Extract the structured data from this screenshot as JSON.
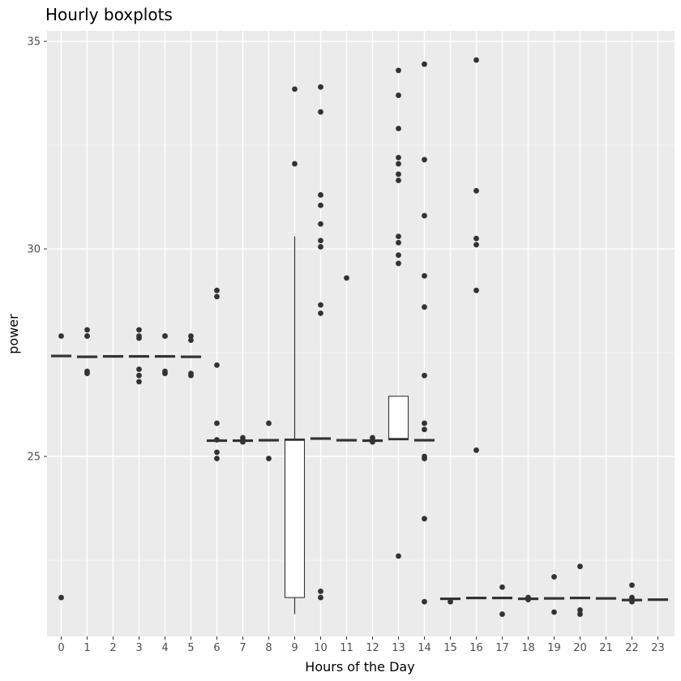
{
  "chart_data": {
    "type": "boxplot",
    "title": "Hourly boxplots",
    "xlabel": "Hours of the Day",
    "ylabel": "power",
    "ylim": [
      20.8,
      35.2
    ],
    "yticks": [
      25,
      30,
      35
    ],
    "grid": true,
    "categories": [
      "0",
      "1",
      "2",
      "3",
      "4",
      "5",
      "6",
      "7",
      "8",
      "9",
      "10",
      "11",
      "12",
      "13",
      "14",
      "15",
      "16",
      "17",
      "18",
      "19",
      "20",
      "21",
      "22",
      "23"
    ],
    "boxes": [
      {
        "hour": "0",
        "q1": 27.4,
        "median": 27.42,
        "q3": 27.44,
        "whisker_low": 27.4,
        "whisker_high": 27.44,
        "outliers": [
          27.9,
          21.6
        ]
      },
      {
        "hour": "1",
        "q1": 27.38,
        "median": 27.4,
        "q3": 27.42,
        "whisker_low": 27.38,
        "whisker_high": 27.42,
        "outliers": [
          28.05,
          27.9,
          27.9,
          27.05,
          27.0
        ]
      },
      {
        "hour": "2",
        "q1": 27.39,
        "median": 27.41,
        "q3": 27.43,
        "whisker_low": 27.39,
        "whisker_high": 27.43,
        "outliers": []
      },
      {
        "hour": "3",
        "q1": 27.39,
        "median": 27.41,
        "q3": 27.43,
        "whisker_low": 27.39,
        "whisker_high": 27.43,
        "outliers": [
          28.05,
          27.9,
          27.85,
          27.1,
          26.95,
          26.8
        ]
      },
      {
        "hour": "4",
        "q1": 27.39,
        "median": 27.41,
        "q3": 27.43,
        "whisker_low": 27.39,
        "whisker_high": 27.43,
        "outliers": [
          27.9,
          27.9,
          27.05,
          27.0
        ]
      },
      {
        "hour": "5",
        "q1": 27.38,
        "median": 27.4,
        "q3": 27.42,
        "whisker_low": 27.38,
        "whisker_high": 27.42,
        "outliers": [
          27.9,
          27.8,
          27.0,
          26.95
        ]
      },
      {
        "hour": "6",
        "q1": 25.36,
        "median": 25.38,
        "q3": 25.4,
        "whisker_low": 25.36,
        "whisker_high": 25.4,
        "outliers": [
          29.0,
          28.85,
          27.2,
          25.8,
          25.4,
          25.1,
          24.95
        ]
      },
      {
        "hour": "7",
        "q1": 25.36,
        "median": 25.38,
        "q3": 25.4,
        "whisker_low": 25.36,
        "whisker_high": 25.4,
        "outliers": [
          25.45,
          25.35
        ]
      },
      {
        "hour": "8",
        "q1": 25.37,
        "median": 25.39,
        "q3": 25.41,
        "whisker_low": 25.37,
        "whisker_high": 25.41,
        "outliers": [
          25.8,
          24.95
        ]
      },
      {
        "hour": "9",
        "q1": 21.6,
        "median": 25.4,
        "q3": 25.42,
        "whisker_low": 21.2,
        "whisker_high": 30.3,
        "outliers": [
          33.85,
          32.05
        ]
      },
      {
        "hour": "10",
        "q1": 25.41,
        "median": 25.43,
        "q3": 25.45,
        "whisker_low": 25.41,
        "whisker_high": 25.45,
        "outliers": [
          33.9,
          33.3,
          31.3,
          31.05,
          30.6,
          30.2,
          30.05,
          28.65,
          28.45,
          21.75,
          21.6
        ]
      },
      {
        "hour": "11",
        "q1": 25.37,
        "median": 25.39,
        "q3": 25.41,
        "whisker_low": 25.37,
        "whisker_high": 25.41,
        "outliers": [
          29.3
        ]
      },
      {
        "hour": "12",
        "q1": 25.36,
        "median": 25.38,
        "q3": 25.4,
        "whisker_low": 25.36,
        "whisker_high": 25.4,
        "outliers": [
          25.45,
          25.35
        ]
      },
      {
        "hour": "13",
        "q1": 25.4,
        "median": 25.42,
        "q3": 26.45,
        "whisker_low": 25.4,
        "whisker_high": 26.45,
        "outliers": [
          34.3,
          33.7,
          32.9,
          32.2,
          32.05,
          31.8,
          31.65,
          30.3,
          30.15,
          29.85,
          29.65,
          22.6
        ]
      },
      {
        "hour": "14",
        "q1": 25.37,
        "median": 25.39,
        "q3": 25.41,
        "whisker_low": 25.37,
        "whisker_high": 25.41,
        "outliers": [
          34.45,
          32.15,
          30.8,
          29.35,
          28.6,
          26.95,
          25.8,
          25.65,
          25.0,
          24.95,
          23.5,
          21.5
        ]
      },
      {
        "hour": "15",
        "q1": 21.55,
        "median": 21.57,
        "q3": 21.59,
        "whisker_low": 21.55,
        "whisker_high": 21.59,
        "outliers": [
          21.5
        ]
      },
      {
        "hour": "16",
        "q1": 21.57,
        "median": 21.59,
        "q3": 21.61,
        "whisker_low": 21.57,
        "whisker_high": 21.61,
        "outliers": [
          34.55,
          31.4,
          30.25,
          30.1,
          29.0,
          25.15
        ]
      },
      {
        "hour": "17",
        "q1": 21.57,
        "median": 21.59,
        "q3": 21.61,
        "whisker_low": 21.57,
        "whisker_high": 21.61,
        "outliers": [
          21.85,
          21.2
        ]
      },
      {
        "hour": "18",
        "q1": 21.55,
        "median": 21.57,
        "q3": 21.59,
        "whisker_low": 21.55,
        "whisker_high": 21.59,
        "outliers": [
          21.6,
          21.55
        ]
      },
      {
        "hour": "19",
        "q1": 21.56,
        "median": 21.58,
        "q3": 21.6,
        "whisker_low": 21.56,
        "whisker_high": 21.6,
        "outliers": [
          22.1,
          21.25
        ]
      },
      {
        "hour": "20",
        "q1": 21.57,
        "median": 21.59,
        "q3": 21.61,
        "whisker_low": 21.57,
        "whisker_high": 21.61,
        "outliers": [
          22.35,
          21.3,
          21.2
        ]
      },
      {
        "hour": "21",
        "q1": 21.56,
        "median": 21.58,
        "q3": 21.6,
        "whisker_low": 21.56,
        "whisker_high": 21.6,
        "outliers": []
      },
      {
        "hour": "22",
        "q1": 21.52,
        "median": 21.54,
        "q3": 21.56,
        "whisker_low": 21.52,
        "whisker_high": 21.56,
        "outliers": [
          21.9,
          21.6,
          21.5
        ]
      },
      {
        "hour": "23",
        "q1": 21.53,
        "median": 21.55,
        "q3": 21.57,
        "whisker_low": 21.53,
        "whisker_high": 21.57,
        "outliers": []
      }
    ]
  }
}
